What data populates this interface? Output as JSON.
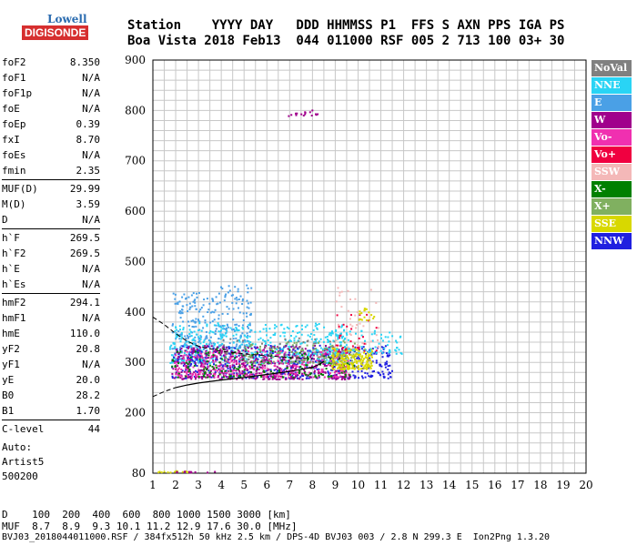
{
  "logo": {
    "line1": "Lowell",
    "line2": "DIGISONDE"
  },
  "header": {
    "row1": "Station    YYYY DAY   DDD HHMMSS P1  FFS S AXN PPS IGA PS",
    "row2": "Boa Vista 2018 Feb13  044 011000 RSF 005 2 713 100 03+ 30"
  },
  "params": [
    {
      "name": "foF2",
      "value": "8.350"
    },
    {
      "name": "foF1",
      "value": "N/A"
    },
    {
      "name": "foF1p",
      "value": "N/A"
    },
    {
      "name": "foE",
      "value": "N/A"
    },
    {
      "name": "foEp",
      "value": "0.39"
    },
    {
      "name": "fxI",
      "value": "8.70"
    },
    {
      "name": "foEs",
      "value": "N/A"
    },
    {
      "name": "fmin",
      "value": "2.35"
    },
    {
      "sep": true
    },
    {
      "name": "MUF(D)",
      "value": "29.99"
    },
    {
      "name": "M(D)",
      "value": "3.59"
    },
    {
      "name": "D",
      "value": "N/A"
    },
    {
      "sep": true
    },
    {
      "name": "h`F",
      "value": "269.5"
    },
    {
      "name": "h`F2",
      "value": "269.5"
    },
    {
      "name": "h`E",
      "value": "N/A"
    },
    {
      "name": "h`Es",
      "value": "N/A"
    },
    {
      "sep": true
    },
    {
      "name": "hmF2",
      "value": "294.1"
    },
    {
      "name": "hmF1",
      "value": "N/A"
    },
    {
      "name": "hmE",
      "value": "110.0"
    },
    {
      "name": "yF2",
      "value": "20.8"
    },
    {
      "name": "yF1",
      "value": "N/A"
    },
    {
      "name": "yE",
      "value": "20.0"
    },
    {
      "name": "B0",
      "value": "28.2"
    },
    {
      "name": "B1",
      "value": "1.70"
    },
    {
      "sep": true
    },
    {
      "name": "C-level",
      "value": "44"
    }
  ],
  "auto": {
    "line1": "Auto:",
    "line2": "Artist5",
    "line3": "500200"
  },
  "legend": [
    {
      "label": "NoVal",
      "color": "#808080"
    },
    {
      "label": "NNE",
      "color": "#29d4f5"
    },
    {
      "label": "E",
      "color": "#4aa0e6"
    },
    {
      "label": "W",
      "color": "#a0008c"
    },
    {
      "label": "Vo-",
      "color": "#f030b0"
    },
    {
      "label": "Vo+",
      "color": "#f00040"
    },
    {
      "label": "SSW",
      "color": "#f4b8b8"
    },
    {
      "label": "X-",
      "color": "#008000"
    },
    {
      "label": "X+",
      "color": "#80b060"
    },
    {
      "label": "SSE",
      "color": "#d8d800"
    },
    {
      "label": "NNW",
      "color": "#2020e0"
    }
  ],
  "footer": {
    "line1": "D    100  200  400  600  800 1000 1500 3000 [km]",
    "line2": "MUF  8.7  8.9  9.3 10.1 11.2 12.9 17.6 30.0 [MHz]",
    "line3": "BVJ03_2018044011000.RSF / 384fx512h 50 kHz 2.5 km / DPS-4D BVJ03 003 / 2.8 N 299.3 E  Ion2Png 1.3.20"
  },
  "chart_data": {
    "type": "scatter",
    "xlim": [
      1,
      20
    ],
    "ylim": [
      80,
      900
    ],
    "xticks": [
      1,
      2,
      3,
      4,
      5,
      6,
      7,
      8,
      9,
      10,
      11,
      12,
      13,
      14,
      15,
      16,
      17,
      18,
      19,
      20
    ],
    "yticks": [
      80,
      200,
      300,
      400,
      500,
      600,
      700,
      800,
      900
    ],
    "grid": true,
    "trace_upper": [
      [
        1.0,
        390
      ],
      [
        1.5,
        375
      ],
      [
        2.0,
        357
      ],
      [
        2.5,
        342
      ],
      [
        3.0,
        332
      ],
      [
        4.0,
        322
      ],
      [
        5.0,
        317
      ],
      [
        6.0,
        313
      ],
      [
        7.0,
        310
      ],
      [
        8.0,
        307
      ]
    ],
    "trace_lower": [
      [
        1.0,
        232
      ],
      [
        1.5,
        242
      ],
      [
        2.0,
        250
      ],
      [
        2.5,
        255
      ],
      [
        3.0,
        259
      ],
      [
        4.0,
        265
      ],
      [
        5.0,
        270
      ],
      [
        6.0,
        276
      ],
      [
        7.0,
        282
      ],
      [
        8.0,
        290
      ],
      [
        8.3,
        296
      ],
      [
        8.5,
        302
      ]
    ],
    "echo_clusters": [
      {
        "color": "#4aa0e6",
        "x": [
          1.8,
          3.3
        ],
        "y": [
          300,
          440
        ],
        "n": 160
      },
      {
        "color": "#4aa0e6",
        "x": [
          3.3,
          5.3
        ],
        "y": [
          330,
          455
        ],
        "n": 160
      },
      {
        "color": "#29d4f5",
        "x": [
          1.7,
          9.5
        ],
        "y": [
          300,
          380
        ],
        "n": 520
      },
      {
        "color": "#2020e0",
        "x": [
          1.8,
          11.5
        ],
        "y": [
          270,
          335
        ],
        "n": 460
      },
      {
        "color": "#a0008c",
        "x": [
          1.8,
          9.6
        ],
        "y": [
          268,
          335
        ],
        "n": 480
      },
      {
        "color": "#f030b0",
        "x": [
          1.9,
          9.6
        ],
        "y": [
          272,
          325
        ],
        "n": 300
      },
      {
        "color": "#008000",
        "x": [
          1.8,
          9.8
        ],
        "y": [
          272,
          330
        ],
        "n": 170
      },
      {
        "color": "#80b060",
        "x": [
          5.0,
          10.0
        ],
        "y": [
          300,
          345
        ],
        "n": 110
      },
      {
        "color": "#d8d800",
        "x": [
          8.8,
          10.6
        ],
        "y": [
          288,
          330
        ],
        "n": 190
      },
      {
        "color": "#808080",
        "x": [
          4.0,
          9.5
        ],
        "y": [
          300,
          350
        ],
        "n": 70
      },
      {
        "color": "#29d4f5",
        "x": [
          8.0,
          11.9
        ],
        "y": [
          318,
          365
        ],
        "n": 90
      },
      {
        "color": "#f4b8b8",
        "x": [
          9.0,
          10.9
        ],
        "y": [
          330,
          450
        ],
        "n": 40
      },
      {
        "color": "#f00040",
        "x": [
          9.0,
          10.8
        ],
        "y": [
          320,
          400
        ],
        "n": 30
      },
      {
        "color": "#d8d800",
        "x": [
          10.0,
          10.7
        ],
        "y": [
          385,
          410
        ],
        "n": 18
      },
      {
        "color": "#a0008c",
        "x": [
          6.8,
          8.2
        ],
        "y": [
          790,
          802
        ],
        "n": 16
      },
      {
        "color": "#d8d800",
        "x": [
          1.2,
          2.6
        ],
        "y": [
          83,
          86
        ],
        "n": 16
      },
      {
        "color": "#a0008c",
        "x": [
          2.0,
          3.9
        ],
        "y": [
          83,
          86
        ],
        "n": 12
      }
    ]
  }
}
